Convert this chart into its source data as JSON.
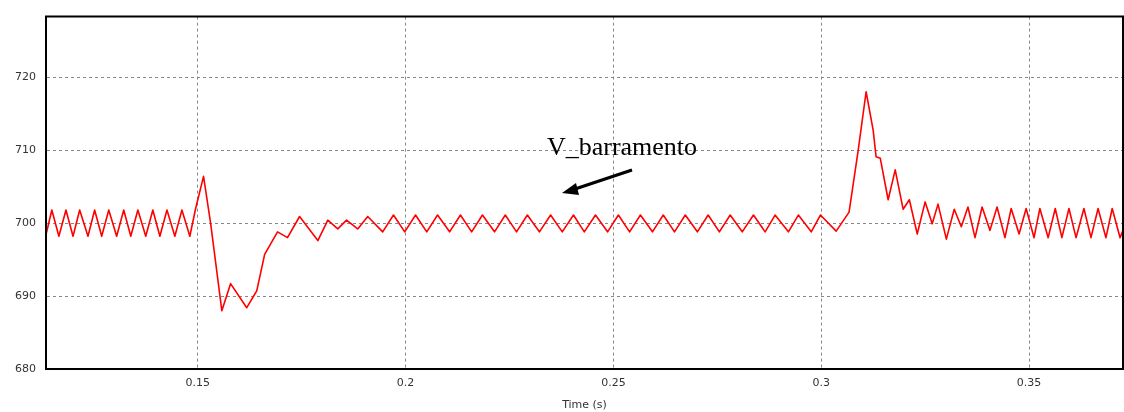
{
  "chart_data": {
    "type": "line",
    "xlabel": "Time (s)",
    "xlim": [
      0.1135,
      0.3726
    ],
    "ylim": [
      680,
      728.3
    ],
    "xticks": [
      0.15,
      0.2,
      0.25,
      0.3,
      0.35
    ],
    "yticks": [
      680,
      690,
      700,
      710,
      720
    ],
    "grid": true,
    "marker": "none",
    "line_style": "solid",
    "annotations": [
      "V_barramento"
    ],
    "series": [
      {
        "color": "#ff0000",
        "x": [
          0.1135,
          0.1149,
          0.1166,
          0.1183,
          0.12,
          0.1216,
          0.1236,
          0.1252,
          0.1269,
          0.1286,
          0.1305,
          0.1322,
          0.1339,
          0.1356,
          0.1375,
          0.1392,
          0.1409,
          0.1426,
          0.1445,
          0.1462,
          0.1481,
          0.1495,
          0.1514,
          0.1531,
          0.1558,
          0.1579,
          0.1618,
          0.1642,
          0.1661,
          0.1692,
          0.1716,
          0.1745,
          0.1789,
          0.1813,
          0.1837,
          0.1858,
          0.1885,
          0.1909,
          0.1945,
          0.1971,
          0.1998,
          0.2024,
          0.2051,
          0.2077,
          0.2106,
          0.2132,
          0.2159,
          0.2185,
          0.2214,
          0.224,
          0.2267,
          0.2293,
          0.2322,
          0.2349,
          0.2377,
          0.2404,
          0.243,
          0.2457,
          0.2486,
          0.2512,
          0.2539,
          0.2565,
          0.2594,
          0.262,
          0.2647,
          0.2673,
          0.2702,
          0.2728,
          0.2755,
          0.2781,
          0.281,
          0.2837,
          0.2865,
          0.2889,
          0.2921,
          0.2945,
          0.2976,
          0.2998,
          0.3036,
          0.3067,
          0.3089,
          0.3108,
          0.3125,
          0.3132,
          0.3142,
          0.3161,
          0.3178,
          0.3197,
          0.3212,
          0.3231,
          0.325,
          0.3267,
          0.3281,
          0.3301,
          0.332,
          0.3337,
          0.3353,
          0.337,
          0.3387,
          0.3406,
          0.3423,
          0.3442,
          0.3457,
          0.3476,
          0.3493,
          0.3512,
          0.3526,
          0.3546,
          0.3563,
          0.3579,
          0.3596,
          0.3613,
          0.3632,
          0.3649,
          0.3666,
          0.3685,
          0.37,
          0.3719,
          0.3726
        ],
        "values": [
          698.4,
          701.8,
          698.2,
          701.8,
          698.2,
          701.8,
          698.2,
          701.8,
          698.2,
          701.8,
          698.2,
          701.8,
          698.2,
          701.8,
          698.2,
          701.8,
          698.2,
          701.8,
          698.2,
          701.8,
          698.2,
          702.0,
          706.4,
          700.0,
          688.0,
          691.7,
          688.4,
          690.7,
          695.7,
          698.8,
          698.0,
          700.9,
          697.6,
          700.4,
          699.2,
          700.4,
          699.2,
          700.9,
          698.8,
          701.1,
          698.8,
          701.1,
          698.8,
          701.1,
          698.8,
          701.1,
          698.8,
          701.1,
          698.8,
          701.1,
          698.8,
          701.1,
          698.8,
          701.1,
          698.8,
          701.1,
          698.8,
          701.1,
          698.8,
          701.1,
          698.8,
          701.1,
          698.8,
          701.1,
          698.8,
          701.1,
          698.8,
          701.1,
          698.8,
          701.1,
          698.8,
          701.1,
          698.8,
          701.1,
          698.8,
          701.1,
          698.8,
          701.1,
          698.9,
          701.5,
          710.0,
          718.0,
          712.7,
          709.1,
          708.9,
          703.2,
          707.3,
          701.9,
          703.2,
          698.5,
          702.9,
          699.9,
          702.6,
          697.8,
          701.9,
          699.5,
          702.2,
          698.0,
          702.2,
          699.0,
          702.2,
          698.0,
          702.0,
          698.5,
          702.0,
          698.0,
          702.0,
          698.0,
          702.0,
          698.0,
          702.0,
          698.0,
          702.0,
          698.0,
          702.0,
          698.0,
          702.0,
          698.0,
          699.0
        ]
      }
    ]
  }
}
